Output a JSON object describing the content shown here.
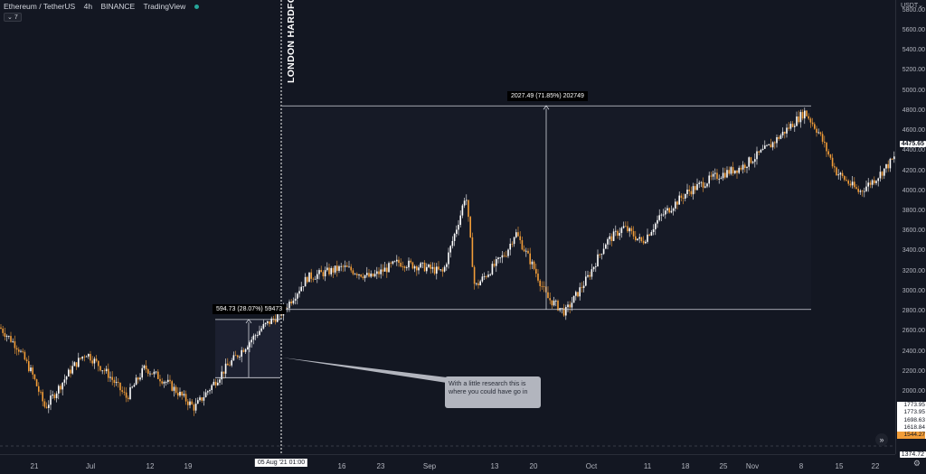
{
  "legend": {
    "symbol": "Ethereum / TetherUS",
    "interval": "4h",
    "exchange": "BINANCE",
    "source": "TradingView",
    "collapse": "7"
  },
  "currency": "USDT",
  "price_ticks": [
    "5800.00",
    "5600.00",
    "5400.00",
    "5200.00",
    "5000.00",
    "4800.00",
    "4600.00",
    "4400.00",
    "4200.00",
    "4000.00",
    "3800.00",
    "3600.00",
    "3400.00",
    "3200.00",
    "3000.00",
    "2800.00",
    "2600.00",
    "2400.00",
    "2200.00",
    "2000.00"
  ],
  "price_ticks_values": [
    5800,
    5600,
    5400,
    5200,
    5000,
    4800,
    4600,
    4400,
    4200,
    4000,
    3800,
    3600,
    3400,
    3200,
    3000,
    2800,
    2600,
    2400,
    2200,
    2000
  ],
  "current_price": "4475.65",
  "lower_scale_labels": [
    "1773.95",
    "1773.95",
    "1698.63",
    "1618.84"
  ],
  "highlight_label": "1544.27",
  "bottom_label": "1374.72",
  "time_ticks": [
    "21",
    "Jul",
    "12",
    "19",
    "16",
    "23",
    "Sep",
    "13",
    "20",
    "Oct",
    "11",
    "18",
    "25",
    "Nov",
    "8",
    "15",
    "22"
  ],
  "crosshair_date": "05 Aug '21 01:00",
  "event_label": "LONDON HARDFORK",
  "measure_small": "594.73 (28.07%) 59473",
  "measure_large": "2027.49 (71.85%) 202749",
  "callout_text": "With a little research this is where you could have go in",
  "colors": {
    "background": "#131722",
    "candle_up": "#ffffff",
    "candle_down": "#f29d38",
    "accent": "#f29d38"
  },
  "chart_data": {
    "type": "candlestick",
    "series_x_ticks": [
      "21",
      "Jul",
      "12",
      "19",
      "16",
      "23",
      "Sep",
      "13",
      "20",
      "Oct",
      "11",
      "18",
      "25",
      "Nov",
      "8",
      "15",
      "22"
    ],
    "path_prices": [
      2650,
      2450,
      2200,
      1850,
      2250,
      2400,
      2180,
      1950,
      2250,
      2100,
      1850,
      2250,
      2650,
      2800,
      3150,
      3250,
      3150,
      3300,
      3250,
      3200,
      3800,
      4000,
      3050,
      3400,
      3600,
      3250,
      2950,
      2800,
      3150,
      3500,
      3650,
      3500,
      3750,
      4000,
      4150,
      4250,
      4450,
      4800,
      4600,
      4200,
      4000,
      4150,
      4350
    ],
    "measure_small": {
      "from": 2150,
      "to": 2730,
      "label": "594.73 (28.07%) 59473"
    },
    "measure_large": {
      "from": 2830,
      "to": 4860,
      "label": "2027.49 (71.85%) 202749"
    },
    "ylim": [
      1350,
      5900
    ]
  }
}
